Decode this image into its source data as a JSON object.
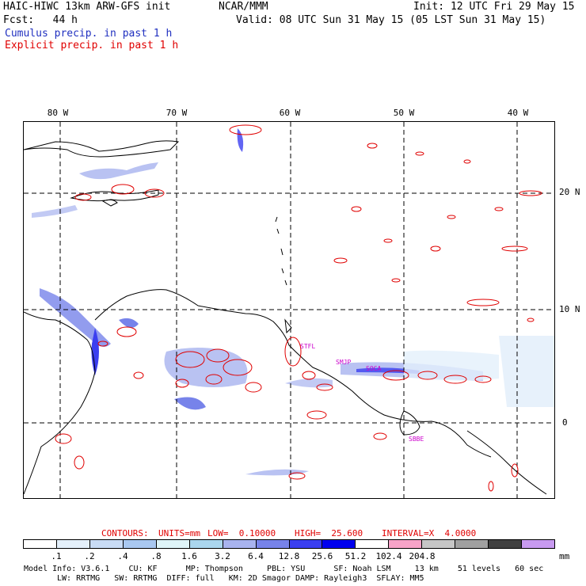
{
  "header": {
    "title_left": "HAIC-HIWC 13km ARW-GFS init",
    "org": "NCAR/MMM",
    "init": "Init: 12 UTC Fri 29 May 15",
    "fcst": "Fcst:   44 h",
    "valid": "Valid: 08 UTC Sun 31 May 15 (05 LST Sun 31 May 15)",
    "cumulus": "Cumulus precip. in past 1 h",
    "explicit": "Explicit precip. in past 1 h"
  },
  "axes": {
    "lon_labels": [
      "80 W",
      "70 W",
      "60 W",
      "50 W",
      "40 W"
    ],
    "lat_labels": [
      "20 N",
      "10 N",
      "0"
    ]
  },
  "stations": [
    "STFL",
    "SMJP",
    "SOCA",
    "SBBE"
  ],
  "contours_line": {
    "label": "CONTOURS:",
    "units": "UNITS=mm",
    "low": "LOW=  0.10000",
    "high": "HIGH=  25.600",
    "interval": "INTERVAL=X  4.0000"
  },
  "colorbar": {
    "colors": [
      "#ffffff",
      "#e4f0fb",
      "#c9dcf6",
      "#a9c8f1",
      "#dff5f9",
      "#aad6ee",
      "#a8b3ef",
      "#7783ea",
      "#3b3ff0",
      "#0000ee",
      "#ffffff",
      "#f7a3c8",
      "#c6c6c6",
      "#a0a0a0",
      "#404040",
      "#c89af0"
    ],
    "ticks": [
      ".1",
      ".2",
      ".4",
      ".8",
      "1.6",
      "3.2",
      "6.4",
      "12.8",
      "25.6",
      "51.2",
      "102.4",
      "204.8"
    ],
    "unit": "mm"
  },
  "model_info": {
    "line1": "Model Info: V3.6.1    CU: KF      MP: Thompson     PBL: YSU      SF: Noah LSM     13 km    51 levels   60 sec",
    "line2": "LW: RRTMG   SW: RRTMG  DIFF: full   KM: 2D Smagor DAMP: Rayleigh3  SFLAY: MM5"
  },
  "colors": {
    "cumulus": "#2030c0",
    "explicit": "#e00000",
    "station": "#cc00cc"
  }
}
